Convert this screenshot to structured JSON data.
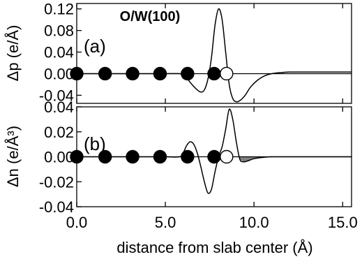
{
  "chart_data": [
    {
      "id": "a",
      "type": "line",
      "title": "O/W(100)",
      "panel_label": "(a)",
      "ylabel": "Δp (e/Å)",
      "xlim": [
        0,
        15.5
      ],
      "ylim": [
        -0.055,
        0.13
      ],
      "yticks": [
        -0.04,
        0.0,
        0.04,
        0.08,
        0.12
      ],
      "ytick_labels": [
        "-0.04",
        "0.00",
        "0.04",
        "0.08",
        "0.12"
      ],
      "zero_line": true,
      "series": [
        {
          "x": [
            0.0,
            1.0,
            2.0,
            3.0,
            4.0,
            5.0,
            5.8,
            6.0,
            6.2,
            6.5,
            6.8,
            7.0,
            7.2,
            7.4,
            7.6,
            7.8,
            8.0,
            8.2,
            8.4,
            8.6,
            8.8,
            9.0,
            9.2,
            9.5,
            9.8,
            10.2,
            10.6,
            11.0,
            11.5,
            12.0,
            13.0,
            14.0,
            15.5
          ],
          "y": [
            0.0,
            0.0,
            0.0,
            0.0,
            0.0,
            0.0,
            0.0,
            -0.002,
            -0.008,
            -0.02,
            -0.03,
            -0.034,
            -0.03,
            -0.01,
            0.03,
            0.09,
            0.12,
            0.1,
            0.04,
            -0.02,
            -0.046,
            -0.052,
            -0.05,
            -0.04,
            -0.025,
            -0.012,
            -0.004,
            0.0,
            0.002,
            0.003,
            0.003,
            0.003,
            0.003
          ]
        }
      ],
      "atoms": [
        {
          "x": 0.0,
          "y": 0.0,
          "fill": "black"
        },
        {
          "x": 1.6,
          "y": 0.0,
          "fill": "black"
        },
        {
          "x": 3.15,
          "y": 0.0,
          "fill": "black"
        },
        {
          "x": 4.7,
          "y": 0.0,
          "fill": "black"
        },
        {
          "x": 6.25,
          "y": 0.0,
          "fill": "black"
        },
        {
          "x": 7.75,
          "y": 0.0,
          "fill": "black"
        },
        {
          "x": 8.45,
          "y": 0.0,
          "fill": "white"
        }
      ]
    },
    {
      "id": "b",
      "type": "area",
      "panel_label": "(b)",
      "ylabel": "Δn (e/Å³)",
      "xlabel": "distance from slab center (Å)",
      "xlim": [
        0,
        15.5
      ],
      "ylim": [
        -0.04,
        0.04
      ],
      "xticks": [
        0,
        5,
        10,
        15
      ],
      "xtick_labels": [
        "0.0",
        "5.0",
        "10.0",
        "15.0"
      ],
      "yticks": [
        -0.04,
        -0.02,
        0.0,
        0.02,
        0.04
      ],
      "ytick_labels": [
        "-0.04",
        "-0.02",
        "0.00",
        "0.02",
        "0.04"
      ],
      "zero_line": true,
      "series": [
        {
          "x": [
            0.0,
            1.0,
            2.0,
            3.0,
            4.0,
            5.0,
            5.8,
            6.0,
            6.2,
            6.4,
            6.6,
            6.8,
            7.0,
            7.2,
            7.4,
            7.6,
            7.8,
            8.0,
            8.2,
            8.4,
            8.6,
            8.8,
            9.0,
            9.2,
            9.4,
            9.6,
            9.8,
            10.0,
            10.5,
            11.0,
            12.0,
            13.0,
            15.5
          ],
          "y": [
            0.0,
            0.0,
            0.0,
            0.0,
            0.0,
            0.0,
            0.0,
            0.003,
            0.009,
            0.012,
            0.01,
            0.003,
            -0.008,
            -0.02,
            -0.029,
            -0.026,
            -0.012,
            0.0,
            0.008,
            0.022,
            0.038,
            0.03,
            0.012,
            -0.002,
            -0.004,
            -0.0035,
            -0.0025,
            -0.0015,
            -0.0005,
            0.0,
            0.0,
            0.0,
            0.0
          ]
        }
      ],
      "shaded_region": {
        "x_from": 9.2,
        "x_to": 11.0,
        "color": "#808080"
      },
      "atoms": [
        {
          "x": 0.0,
          "y": 0.0,
          "fill": "black"
        },
        {
          "x": 1.6,
          "y": 0.0,
          "fill": "black"
        },
        {
          "x": 3.15,
          "y": 0.0,
          "fill": "black"
        },
        {
          "x": 4.7,
          "y": 0.0,
          "fill": "black"
        },
        {
          "x": 6.25,
          "y": 0.0,
          "fill": "black"
        },
        {
          "x": 7.75,
          "y": 0.0,
          "fill": "black"
        },
        {
          "x": 8.45,
          "y": 0.0,
          "fill": "white"
        }
      ]
    }
  ]
}
